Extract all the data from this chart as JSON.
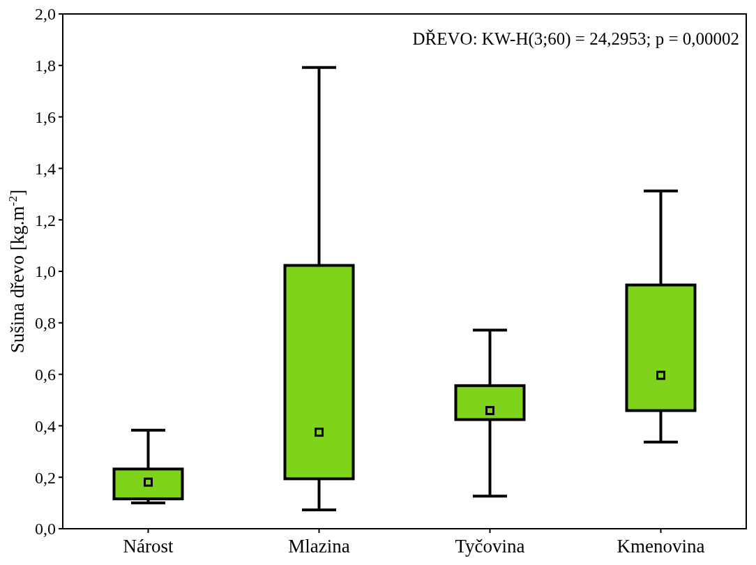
{
  "chart_data": {
    "type": "box",
    "ylabel": "Sušina dřevo [kg.m$^{-2}$]",
    "annotations": [
      "DŘEVO: KW-H(3;60) = 24,2953; p = 0,00002"
    ],
    "categories": [
      "Nárost",
      "Mlazina",
      "Tyčovina",
      "Kmenovina"
    ],
    "color": "#7fd31a",
    "boxes": [
      {
        "low": 0.1,
        "q1": 0.116,
        "median": 0.181,
        "q3": 0.232,
        "high": 0.383
      },
      {
        "low": 0.073,
        "q1": 0.194,
        "median": 0.375,
        "q3": 1.023,
        "high": 1.792
      },
      {
        "low": 0.127,
        "q1": 0.424,
        "median": 0.459,
        "q3": 0.556,
        "high": 0.772
      },
      {
        "low": 0.337,
        "q1": 0.459,
        "median": 0.596,
        "q3": 0.947,
        "high": 1.312
      }
    ],
    "marker": "square",
    "ylim": [
      0,
      2
    ],
    "yticks": [
      {
        "value": 0,
        "label": "0,0"
      },
      {
        "value": 0.2,
        "label": "0,2"
      },
      {
        "value": 0.4,
        "label": "0,4"
      },
      {
        "value": 0.6,
        "label": "0,6"
      },
      {
        "value": 0.8,
        "label": "0,8"
      },
      {
        "value": 1,
        "label": "1,0"
      },
      {
        "value": 1.2,
        "label": "1,2"
      },
      {
        "value": 1.4,
        "label": "1,4"
      },
      {
        "value": 1.6,
        "label": "1,6"
      },
      {
        "value": 1.8,
        "label": "1,8"
      },
      {
        "value": 2,
        "label": "2,0"
      }
    ],
    "grid": false
  }
}
